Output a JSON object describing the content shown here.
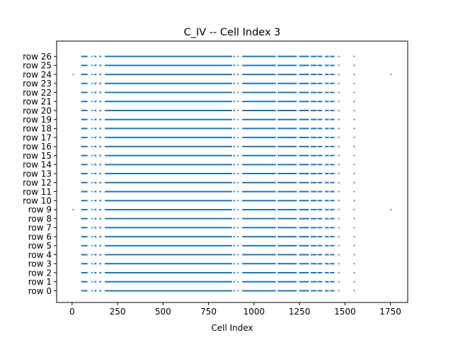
{
  "chart_data": {
    "type": "event-raster",
    "title": "C_IV -- Cell Index 3",
    "xlabel": "Cell Index",
    "ylabel": "",
    "xlim": [
      -85,
      1845
    ],
    "ylim": [
      -1.3,
      27.7
    ],
    "xticks": [
      0,
      250,
      500,
      750,
      1000,
      1250,
      1500,
      1750
    ],
    "xtick_labels": [
      "0",
      "250",
      "500",
      "750",
      "1000",
      "1250",
      "1500",
      "1750"
    ],
    "yticks": [
      0,
      1,
      2,
      3,
      4,
      5,
      6,
      7,
      8,
      9,
      10,
      11,
      12,
      13,
      14,
      15,
      16,
      17,
      18,
      19,
      20,
      21,
      22,
      23,
      24,
      25,
      26
    ],
    "ytick_labels": [
      "row 0",
      "row 1",
      "row 2",
      "row 3",
      "row 4",
      "row 5",
      "row 6",
      "row 7",
      "row 8",
      "row 9",
      "row 10",
      "row 11",
      "row 12",
      "row 13",
      "row 14",
      "row 15",
      "row 16",
      "row 17",
      "row 18",
      "row 19",
      "row 20",
      "row 21",
      "row 22",
      "row 23",
      "row 24",
      "row 25",
      "row 26"
    ],
    "grid": false,
    "color": "#1f77b4",
    "common_segments": [
      [
        50,
        85
      ],
      [
        108,
        112
      ],
      [
        122,
        134
      ],
      [
        150,
        160
      ],
      [
        180,
        880
      ],
      [
        888,
        896
      ],
      [
        910,
        914
      ],
      [
        935,
        1120
      ],
      [
        1130,
        1235
      ],
      [
        1248,
        1302
      ],
      [
        1312,
        1345
      ],
      [
        1350,
        1375
      ],
      [
        1390,
        1412
      ],
      [
        1418,
        1442
      ],
      [
        1465,
        1467
      ],
      [
        1550,
        1552
      ]
    ],
    "special_rows": [
      9,
      24
    ],
    "special_segments": [
      [
        5,
        7
      ],
      [
        1750,
        1755
      ]
    ]
  }
}
